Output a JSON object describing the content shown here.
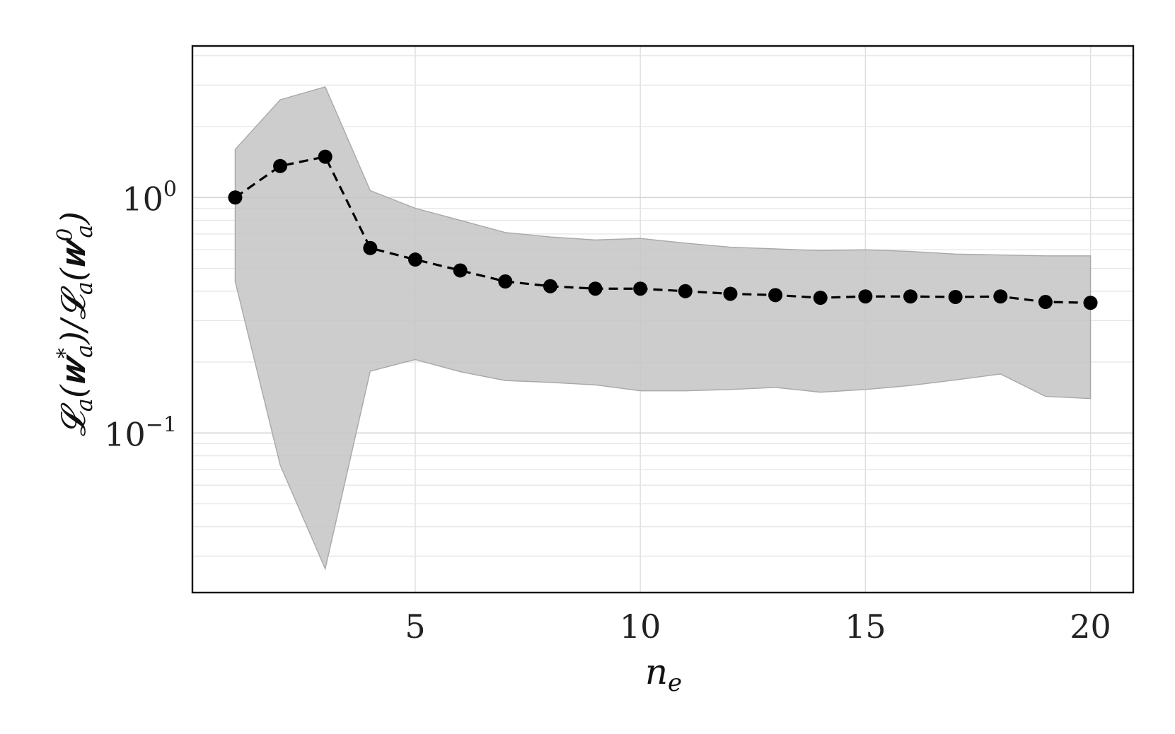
{
  "chart_data": {
    "type": "line",
    "title": "",
    "xlabel": "n_e",
    "ylabel": "𝓛_a(𝒘_a*)/𝓛_a(𝒘_a⁰)",
    "yscale": "log",
    "xlim": [
      0.05,
      20.95
    ],
    "ylim": [
      0.021,
      4.4
    ],
    "grid": true,
    "legend": "none",
    "x_ticks": [
      5,
      10,
      15,
      20
    ],
    "y_ticks": [
      {
        "value": 1,
        "base": "10",
        "exp": "0"
      },
      {
        "value": 0.1,
        "base": "10",
        "exp": "−1"
      }
    ],
    "x": [
      1,
      2,
      3,
      4,
      5,
      6,
      7,
      8,
      9,
      10,
      11,
      12,
      13,
      14,
      15,
      16,
      17,
      18,
      19,
      20
    ],
    "series": [
      {
        "values": [
          1.0,
          1.36,
          1.49,
          0.61,
          0.545,
          0.49,
          0.44,
          0.42,
          0.41,
          0.41,
          0.4,
          0.39,
          0.385,
          0.375,
          0.38,
          0.38,
          0.378,
          0.38,
          0.36,
          0.357
        ],
        "band_upper": [
          1.6,
          2.6,
          2.95,
          1.07,
          0.9,
          0.8,
          0.71,
          0.68,
          0.66,
          0.67,
          0.64,
          0.615,
          0.605,
          0.595,
          0.6,
          0.59,
          0.575,
          0.57,
          0.565,
          0.565
        ],
        "band_lower": [
          0.44,
          0.073,
          0.0265,
          0.183,
          0.205,
          0.182,
          0.167,
          0.164,
          0.16,
          0.151,
          0.151,
          0.153,
          0.156,
          0.149,
          0.153,
          0.159,
          0.168,
          0.178,
          0.143,
          0.14
        ],
        "color": "#000000",
        "band_color": "#c4c4c4",
        "line_style": "dashed"
      }
    ]
  }
}
